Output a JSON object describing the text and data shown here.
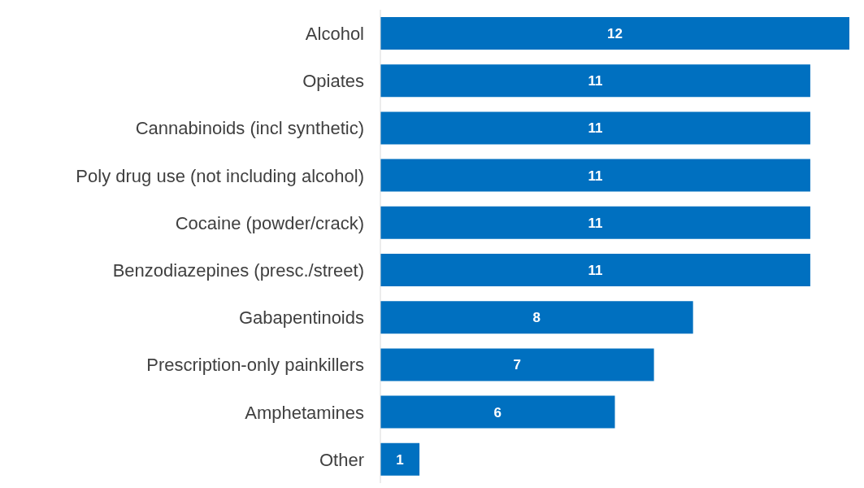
{
  "chart_data": {
    "type": "bar",
    "orientation": "horizontal",
    "categories": [
      "Alcohol",
      "Opiates",
      "Cannabinoids (incl synthetic)",
      "Poly drug use (not including alcohol)",
      "Cocaine (powder/crack)",
      "Benzodiazepines (presc./street)",
      "Gabapentinoids",
      "Prescription-only painkillers",
      "Amphetamines",
      "Other"
    ],
    "values": [
      12,
      11,
      11,
      11,
      11,
      11,
      8,
      7,
      6,
      1
    ],
    "color": "#0070c0",
    "data_labels": true
  }
}
